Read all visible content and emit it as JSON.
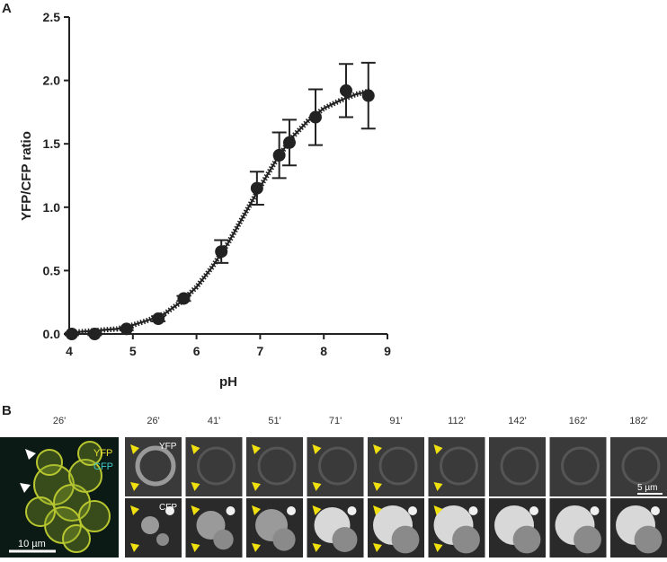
{
  "chart_data": {
    "type": "scatter",
    "xlabel": "pH",
    "ylabel": "YFP/CFP ratio",
    "xlim": [
      4,
      9
    ],
    "ylim": [
      0,
      2.5
    ],
    "xticks": [
      4,
      5,
      6,
      7,
      8,
      9
    ],
    "yticks": [
      {
        "value": 0,
        "label": "0.0"
      },
      0.5,
      {
        "value": 1,
        "label": "1.0"
      },
      1.5,
      {
        "value": 2,
        "label": "2.0"
      },
      2.5
    ],
    "series": [
      {
        "color": "#222222",
        "x": [
          4.04,
          4.4,
          4.9,
          5.4,
          5.8,
          6.39,
          6.95,
          7.3,
          7.46,
          7.87,
          8.35,
          8.7
        ],
        "values": [
          0.0,
          0.0,
          0.04,
          0.12,
          0.28,
          0.65,
          1.15,
          1.41,
          1.51,
          1.71,
          1.92,
          1.88
        ],
        "errors": [
          0.01,
          0.01,
          0.01,
          0.02,
          0.02,
          0.09,
          0.13,
          0.18,
          0.18,
          0.22,
          0.21,
          0.26
        ]
      }
    ],
    "fit": {
      "color": "#222222",
      "x": [
        4.0,
        4.25,
        4.5,
        4.75,
        5.0,
        5.25,
        5.5,
        5.75,
        6.0,
        6.25,
        6.5,
        6.75,
        7.0,
        7.25,
        7.5,
        7.75,
        8.0,
        8.25,
        8.5,
        8.75
      ],
      "values": [
        0.01,
        0.02,
        0.03,
        0.04,
        0.07,
        0.11,
        0.16,
        0.25,
        0.37,
        0.53,
        0.72,
        0.94,
        1.16,
        1.37,
        1.55,
        1.68,
        1.78,
        1.84,
        1.89,
        1.92
      ]
    }
  },
  "panels": {
    "a_label": "A",
    "b_label": "B",
    "overview": {
      "time": "26'",
      "yfp": "YFP",
      "cfp": "CFP",
      "scale": "10 µm"
    },
    "times": [
      "26'",
      "41'",
      "51'",
      "71'",
      "91'",
      "112'",
      "142'",
      "162'",
      "182'"
    ],
    "row_labels": [
      "YFP",
      "CFP"
    ],
    "scale": "5 µm"
  }
}
